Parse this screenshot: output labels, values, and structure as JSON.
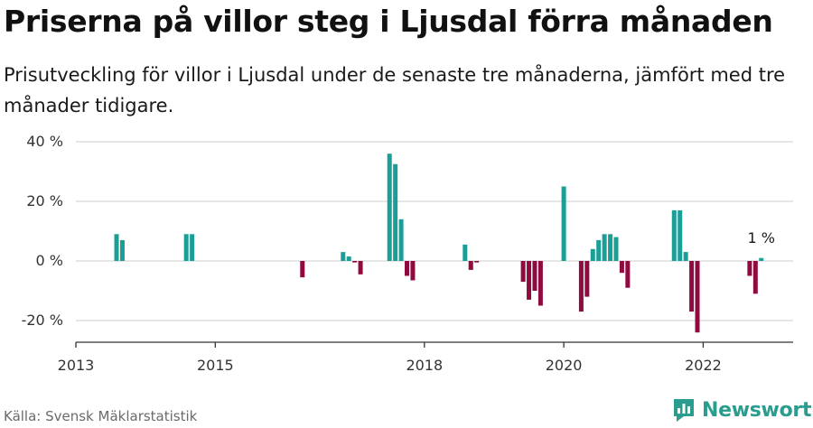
{
  "header": {
    "title": "Priserna på villor steg i Ljusdal förra månaden",
    "subtitle": "Prisutveckling för villor i Ljusdal under de senaste tre månaderna, jämfört med tre månader tidigare."
  },
  "footer": {
    "source": "Källa: Svensk Mäklarstatistik",
    "brand": "Newsworthy"
  },
  "colors": {
    "positive": "#1a9e96",
    "negative": "#8f0a3e",
    "grid": "#d6d6d6",
    "axis": "#333333",
    "brand": "#2a9d8f"
  },
  "chart_data": {
    "type": "bar",
    "x_unit": "month",
    "ylim": [
      -27,
      40
    ],
    "yticks": [
      40,
      20,
      0,
      -20
    ],
    "ytick_labels": [
      "40 %",
      "20 %",
      "0 %",
      "-20 %"
    ],
    "xlim": [
      "2013-01",
      "2023-04"
    ],
    "xticks": [
      "2013-01",
      "2015-01",
      "2018-01",
      "2020-01",
      "2022-01"
    ],
    "xtick_labels": [
      "2013",
      "2015",
      "2018",
      "2020",
      "2022"
    ],
    "grid": true,
    "annotation": {
      "text": "1 %",
      "month": "2022-11"
    },
    "values": [
      {
        "month": "2013-08",
        "value": 9
      },
      {
        "month": "2013-09",
        "value": 7
      },
      {
        "month": "2014-08",
        "value": 9
      },
      {
        "month": "2014-09",
        "value": 9
      },
      {
        "month": "2016-04",
        "value": -5.5
      },
      {
        "month": "2016-11",
        "value": 3
      },
      {
        "month": "2016-12",
        "value": 1.5
      },
      {
        "month": "2017-01",
        "value": -0.5
      },
      {
        "month": "2017-02",
        "value": -4.5
      },
      {
        "month": "2017-07",
        "value": 36
      },
      {
        "month": "2017-08",
        "value": 32.5
      },
      {
        "month": "2017-09",
        "value": 14
      },
      {
        "month": "2017-10",
        "value": -5
      },
      {
        "month": "2017-11",
        "value": -6.5
      },
      {
        "month": "2018-08",
        "value": 5.5
      },
      {
        "month": "2018-09",
        "value": -3
      },
      {
        "month": "2018-10",
        "value": -0.5
      },
      {
        "month": "2019-06",
        "value": -7
      },
      {
        "month": "2019-07",
        "value": -13
      },
      {
        "month": "2019-08",
        "value": -10
      },
      {
        "month": "2019-09",
        "value": -15
      },
      {
        "month": "2020-01",
        "value": 25
      },
      {
        "month": "2020-04",
        "value": -17
      },
      {
        "month": "2020-05",
        "value": -12
      },
      {
        "month": "2020-06",
        "value": 4
      },
      {
        "month": "2020-07",
        "value": 7
      },
      {
        "month": "2020-08",
        "value": 9
      },
      {
        "month": "2020-09",
        "value": 9
      },
      {
        "month": "2020-10",
        "value": 8
      },
      {
        "month": "2020-11",
        "value": -4
      },
      {
        "month": "2020-12",
        "value": -9
      },
      {
        "month": "2021-08",
        "value": 17
      },
      {
        "month": "2021-09",
        "value": 17
      },
      {
        "month": "2021-10",
        "value": 3
      },
      {
        "month": "2021-11",
        "value": -17
      },
      {
        "month": "2021-12",
        "value": -24
      },
      {
        "month": "2022-09",
        "value": -5
      },
      {
        "month": "2022-10",
        "value": -11
      },
      {
        "month": "2022-11",
        "value": 1
      }
    ]
  }
}
